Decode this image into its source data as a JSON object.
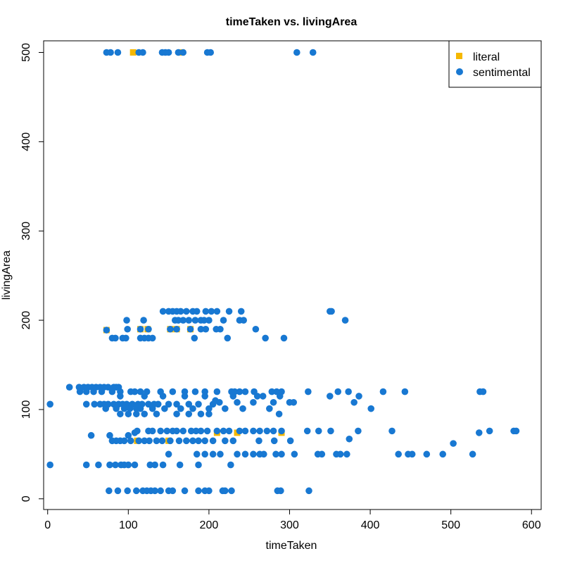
{
  "chart_data": {
    "type": "scatter",
    "title": "timeTaken vs. livingArea",
    "xlabel": "timeTaken",
    "ylabel": "livingArea",
    "xlim": [
      -5,
      612
    ],
    "ylim": [
      -12,
      513
    ],
    "xticks": [
      0,
      100,
      200,
      300,
      400,
      500,
      600
    ],
    "yticks": [
      0,
      100,
      200,
      300,
      400,
      500
    ],
    "grid": false,
    "legend_position": "top-right",
    "series": [
      {
        "name": "literal",
        "marker": "square",
        "color": "#f5b800",
        "points": [
          [
            73,
            189
          ],
          [
            115,
            190
          ],
          [
            124,
            190
          ],
          [
            152,
            190
          ],
          [
            160,
            190
          ],
          [
            177,
            190
          ],
          [
            111,
            65
          ],
          [
            150,
            65
          ],
          [
            210,
            74
          ],
          [
            235,
            74
          ],
          [
            290,
            74
          ],
          [
            106,
            500
          ],
          [
            166,
            500
          ]
        ]
      },
      {
        "name": "sentimental",
        "marker": "circle",
        "color": "#1878d2",
        "points": [
          [
            73,
            500
          ],
          [
            78,
            500
          ],
          [
            87,
            500
          ],
          [
            113,
            500
          ],
          [
            118,
            500
          ],
          [
            142,
            500
          ],
          [
            146,
            500
          ],
          [
            150,
            500
          ],
          [
            162,
            500
          ],
          [
            168,
            500
          ],
          [
            198,
            500
          ],
          [
            202,
            500
          ],
          [
            309,
            500
          ],
          [
            329,
            500
          ],
          [
            143,
            210
          ],
          [
            150,
            210
          ],
          [
            155,
            210
          ],
          [
            160,
            210
          ],
          [
            165,
            210
          ],
          [
            172,
            210
          ],
          [
            180,
            210
          ],
          [
            185,
            210
          ],
          [
            196,
            210
          ],
          [
            203,
            210
          ],
          [
            210,
            210
          ],
          [
            225,
            210
          ],
          [
            240,
            210
          ],
          [
            350,
            210
          ],
          [
            352,
            210
          ],
          [
            98,
            200
          ],
          [
            119,
            200
          ],
          [
            158,
            200
          ],
          [
            162,
            200
          ],
          [
            168,
            200
          ],
          [
            175,
            200
          ],
          [
            183,
            200
          ],
          [
            190,
            200
          ],
          [
            194,
            200
          ],
          [
            200,
            200
          ],
          [
            218,
            200
          ],
          [
            238,
            200
          ],
          [
            243,
            200
          ],
          [
            369,
            200
          ],
          [
            73,
            189
          ],
          [
            99,
            190
          ],
          [
            115,
            190
          ],
          [
            125,
            190
          ],
          [
            152,
            190
          ],
          [
            160,
            190
          ],
          [
            177,
            190
          ],
          [
            190,
            190
          ],
          [
            196,
            190
          ],
          [
            209,
            190
          ],
          [
            214,
            190
          ],
          [
            258,
            190
          ],
          [
            80,
            180
          ],
          [
            84,
            180
          ],
          [
            93,
            180
          ],
          [
            97,
            180
          ],
          [
            115,
            180
          ],
          [
            120,
            180
          ],
          [
            125,
            180
          ],
          [
            130,
            180
          ],
          [
            182,
            180
          ],
          [
            223,
            180
          ],
          [
            270,
            180
          ],
          [
            293,
            180
          ],
          [
            3,
            106
          ],
          [
            3,
            38
          ],
          [
            27,
            125
          ],
          [
            39,
            125
          ],
          [
            45,
            125
          ],
          [
            50,
            125
          ],
          [
            55,
            125
          ],
          [
            60,
            125
          ],
          [
            65,
            125
          ],
          [
            70,
            125
          ],
          [
            75,
            125
          ],
          [
            82,
            125
          ],
          [
            85,
            125
          ],
          [
            88,
            125
          ],
          [
            40,
            120
          ],
          [
            48,
            120
          ],
          [
            57,
            120
          ],
          [
            67,
            120
          ],
          [
            80,
            120
          ],
          [
            90,
            120
          ],
          [
            103,
            120
          ],
          [
            108,
            120
          ],
          [
            115,
            120
          ],
          [
            123,
            120
          ],
          [
            140,
            120
          ],
          [
            155,
            120
          ],
          [
            170,
            120
          ],
          [
            183,
            120
          ],
          [
            195,
            120
          ],
          [
            210,
            120
          ],
          [
            228,
            120
          ],
          [
            232,
            120
          ],
          [
            238,
            120
          ],
          [
            245,
            120
          ],
          [
            256,
            120
          ],
          [
            278,
            120
          ],
          [
            284,
            120
          ],
          [
            290,
            120
          ],
          [
            323,
            120
          ],
          [
            360,
            120
          ],
          [
            373,
            120
          ],
          [
            416,
            120
          ],
          [
            443,
            120
          ],
          [
            536,
            120
          ],
          [
            540,
            120
          ],
          [
            90,
            115
          ],
          [
            120,
            115
          ],
          [
            143,
            115
          ],
          [
            170,
            115
          ],
          [
            195,
            115
          ],
          [
            230,
            115
          ],
          [
            260,
            115
          ],
          [
            267,
            115
          ],
          [
            288,
            115
          ],
          [
            350,
            115
          ],
          [
            386,
            115
          ],
          [
            48,
            106
          ],
          [
            58,
            106
          ],
          [
            65,
            106
          ],
          [
            70,
            106
          ],
          [
            75,
            106
          ],
          [
            82,
            106
          ],
          [
            88,
            106
          ],
          [
            93,
            106
          ],
          [
            98,
            106
          ],
          [
            105,
            106
          ],
          [
            112,
            106
          ],
          [
            117,
            106
          ],
          [
            125,
            106
          ],
          [
            132,
            106
          ],
          [
            137,
            106
          ],
          [
            150,
            106
          ],
          [
            160,
            106
          ],
          [
            175,
            106
          ],
          [
            187,
            106
          ],
          [
            205,
            106
          ],
          [
            208,
            110
          ],
          [
            213,
            108
          ],
          [
            235,
            108
          ],
          [
            255,
            108
          ],
          [
            280,
            108
          ],
          [
            300,
            108
          ],
          [
            305,
            108
          ],
          [
            380,
            108
          ],
          [
            72,
            101
          ],
          [
            85,
            101
          ],
          [
            95,
            101
          ],
          [
            102,
            101
          ],
          [
            110,
            101
          ],
          [
            115,
            101
          ],
          [
            130,
            101
          ],
          [
            145,
            101
          ],
          [
            165,
            101
          ],
          [
            180,
            101
          ],
          [
            200,
            101
          ],
          [
            220,
            101
          ],
          [
            242,
            101
          ],
          [
            275,
            101
          ],
          [
            401,
            101
          ],
          [
            90,
            95
          ],
          [
            100,
            95
          ],
          [
            110,
            95
          ],
          [
            120,
            95
          ],
          [
            135,
            95
          ],
          [
            160,
            95
          ],
          [
            175,
            95
          ],
          [
            190,
            95
          ],
          [
            200,
            95
          ],
          [
            287,
            95
          ],
          [
            54,
            71
          ],
          [
            77,
            71
          ],
          [
            100,
            71
          ],
          [
            108,
            74
          ],
          [
            111,
            76
          ],
          [
            125,
            76
          ],
          [
            130,
            76
          ],
          [
            140,
            76
          ],
          [
            148,
            76
          ],
          [
            155,
            76
          ],
          [
            160,
            76
          ],
          [
            168,
            76
          ],
          [
            178,
            76
          ],
          [
            184,
            76
          ],
          [
            190,
            76
          ],
          [
            198,
            76
          ],
          [
            210,
            76
          ],
          [
            218,
            76
          ],
          [
            225,
            76
          ],
          [
            238,
            76
          ],
          [
            245,
            76
          ],
          [
            255,
            76
          ],
          [
            263,
            76
          ],
          [
            272,
            76
          ],
          [
            280,
            76
          ],
          [
            290,
            76
          ],
          [
            322,
            76
          ],
          [
            336,
            76
          ],
          [
            351,
            76
          ],
          [
            385,
            76
          ],
          [
            427,
            76
          ],
          [
            535,
            74
          ],
          [
            548,
            76
          ],
          [
            578,
            76
          ],
          [
            581,
            76
          ],
          [
            80,
            65
          ],
          [
            85,
            65
          ],
          [
            90,
            65
          ],
          [
            95,
            65
          ],
          [
            103,
            65
          ],
          [
            113,
            65
          ],
          [
            120,
            65
          ],
          [
            126,
            65
          ],
          [
            135,
            65
          ],
          [
            142,
            65
          ],
          [
            152,
            65
          ],
          [
            163,
            65
          ],
          [
            172,
            65
          ],
          [
            180,
            65
          ],
          [
            187,
            65
          ],
          [
            195,
            65
          ],
          [
            205,
            65
          ],
          [
            220,
            65
          ],
          [
            230,
            65
          ],
          [
            262,
            65
          ],
          [
            281,
            65
          ],
          [
            301,
            65
          ],
          [
            374,
            67
          ],
          [
            503,
            62
          ],
          [
            150,
            50
          ],
          [
            185,
            50
          ],
          [
            195,
            50
          ],
          [
            205,
            50
          ],
          [
            214,
            50
          ],
          [
            235,
            50
          ],
          [
            245,
            50
          ],
          [
            255,
            50
          ],
          [
            263,
            50
          ],
          [
            268,
            50
          ],
          [
            283,
            50
          ],
          [
            290,
            50
          ],
          [
            306,
            50
          ],
          [
            335,
            50
          ],
          [
            340,
            50
          ],
          [
            358,
            50
          ],
          [
            363,
            50
          ],
          [
            371,
            50
          ],
          [
            435,
            50
          ],
          [
            447,
            50
          ],
          [
            452,
            50
          ],
          [
            470,
            50
          ],
          [
            490,
            50
          ],
          [
            527,
            50
          ],
          [
            48,
            38
          ],
          [
            63,
            38
          ],
          [
            77,
            38
          ],
          [
            84,
            38
          ],
          [
            91,
            38
          ],
          [
            95,
            38
          ],
          [
            100,
            38
          ],
          [
            108,
            38
          ],
          [
            127,
            38
          ],
          [
            133,
            38
          ],
          [
            143,
            38
          ],
          [
            164,
            38
          ],
          [
            187,
            38
          ],
          [
            227,
            38
          ],
          [
            76,
            9
          ],
          [
            87,
            9
          ],
          [
            99,
            9
          ],
          [
            110,
            9
          ],
          [
            118,
            9
          ],
          [
            123,
            9
          ],
          [
            128,
            9
          ],
          [
            133,
            9
          ],
          [
            140,
            9
          ],
          [
            150,
            9
          ],
          [
            155,
            9
          ],
          [
            170,
            9
          ],
          [
            187,
            9
          ],
          [
            195,
            9
          ],
          [
            200,
            9
          ],
          [
            217,
            9
          ],
          [
            220,
            9
          ],
          [
            228,
            9
          ],
          [
            285,
            9
          ],
          [
            289,
            9
          ],
          [
            324,
            9
          ]
        ]
      }
    ]
  }
}
